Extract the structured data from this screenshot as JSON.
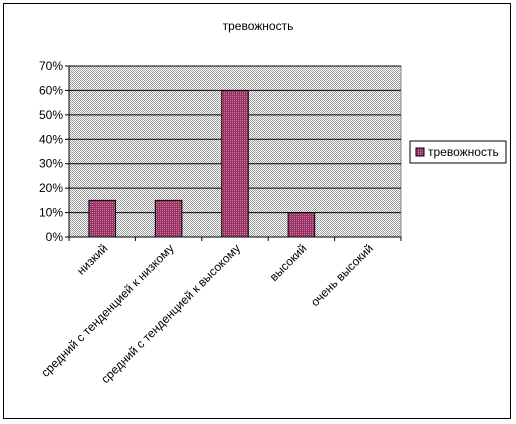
{
  "chart_data": {
    "type": "bar",
    "title": "тревожность",
    "categories": [
      "низкий",
      "средний с тенденцией к низкому",
      "средний с тенденцией к высокому",
      "высокий",
      "очень высокий"
    ],
    "series": [
      {
        "name": "тревожность",
        "values": [
          15,
          15,
          60,
          10,
          0
        ]
      }
    ],
    "ylim": [
      0,
      70
    ],
    "yticks": [
      "0%",
      "10%",
      "20%",
      "30%",
      "40%",
      "50%",
      "60%",
      "70%"
    ],
    "grid": true,
    "legend": "right",
    "colors": {
      "bar": "#993366",
      "plot_bg": "#c0c0c0",
      "grid": "#000000"
    }
  }
}
